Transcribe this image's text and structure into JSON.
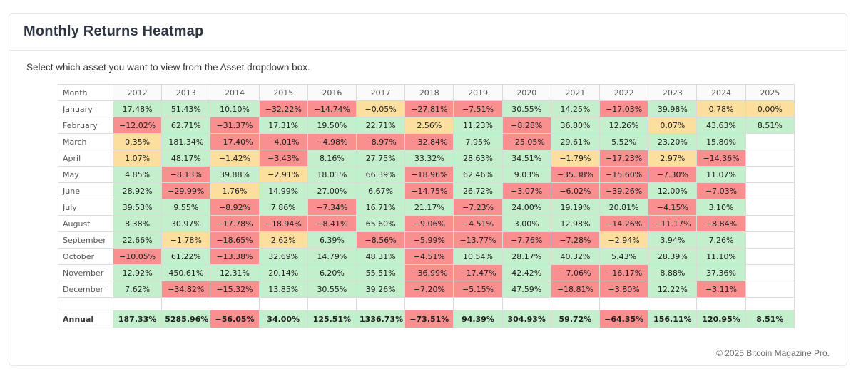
{
  "page": {
    "title": "Monthly Returns Heatmap",
    "subtitle": "Select which asset you want to view from the Asset dropdown box.",
    "footer": "© 2025 Bitcoin Magazine Pro."
  },
  "colors": {
    "positive": "#c4efcd",
    "negative": "#f98f8f",
    "neutral": "#fcdf9f",
    "empty": "#ffffff"
  },
  "chart_data": {
    "type": "heatmap",
    "title": "Monthly Returns Heatmap",
    "color_rule": "green if value >= 3%, red if value <= -3%, yellow if |value| < 3%, white if no data",
    "columns": [
      "Month",
      "2012",
      "2013",
      "2014",
      "2015",
      "2016",
      "2017",
      "2018",
      "2019",
      "2020",
      "2021",
      "2022",
      "2023",
      "2024",
      "2025"
    ],
    "rows": [
      {
        "label": "January",
        "values": [
          "17.48%",
          "51.43%",
          "10.10%",
          "−32.22%",
          "−14.74%",
          "−0.05%",
          "−27.81%",
          "−7.51%",
          "30.55%",
          "14.25%",
          "−17.03%",
          "39.98%",
          "0.78%",
          "0.00%"
        ]
      },
      {
        "label": "February",
        "values": [
          "−12.02%",
          "62.71%",
          "−31.37%",
          "17.31%",
          "19.50%",
          "22.71%",
          "2.56%",
          "11.23%",
          "−8.28%",
          "36.80%",
          "12.26%",
          "0.07%",
          "43.63%",
          "8.51%"
        ]
      },
      {
        "label": "March",
        "values": [
          "0.35%",
          "181.34%",
          "−17.40%",
          "−4.01%",
          "−4.98%",
          "−8.97%",
          "−32.84%",
          "7.95%",
          "−25.05%",
          "29.61%",
          "5.52%",
          "23.20%",
          "15.80%",
          ""
        ]
      },
      {
        "label": "April",
        "values": [
          "1.07%",
          "48.17%",
          "−1.42%",
          "−3.43%",
          "8.16%",
          "27.75%",
          "33.32%",
          "28.63%",
          "34.51%",
          "−1.79%",
          "−17.23%",
          "2.97%",
          "−14.36%",
          ""
        ]
      },
      {
        "label": "May",
        "values": [
          "4.85%",
          "−8.13%",
          "39.88%",
          "−2.91%",
          "18.01%",
          "66.39%",
          "−18.96%",
          "62.46%",
          "9.03%",
          "−35.38%",
          "−15.60%",
          "−7.30%",
          "11.07%",
          ""
        ]
      },
      {
        "label": "June",
        "values": [
          "28.92%",
          "−29.99%",
          "1.76%",
          "14.99%",
          "27.00%",
          "6.67%",
          "−14.75%",
          "26.72%",
          "−3.07%",
          "−6.02%",
          "−39.26%",
          "12.00%",
          "−7.03%",
          ""
        ]
      },
      {
        "label": "July",
        "values": [
          "39.53%",
          "9.55%",
          "−8.92%",
          "7.86%",
          "−7.34%",
          "16.71%",
          "21.17%",
          "−7.23%",
          "24.00%",
          "19.19%",
          "20.81%",
          "−4.15%",
          "3.10%",
          ""
        ]
      },
      {
        "label": "August",
        "values": [
          "8.38%",
          "30.97%",
          "−17.78%",
          "−18.94%",
          "−8.41%",
          "65.60%",
          "−9.06%",
          "−4.51%",
          "3.00%",
          "12.98%",
          "−14.26%",
          "−11.17%",
          "−8.84%",
          ""
        ]
      },
      {
        "label": "September",
        "values": [
          "22.66%",
          "−1.78%",
          "−18.65%",
          "2.62%",
          "6.39%",
          "−8.56%",
          "−5.99%",
          "−13.77%",
          "−7.76%",
          "−7.28%",
          "−2.94%",
          "3.94%",
          "7.26%",
          ""
        ]
      },
      {
        "label": "October",
        "values": [
          "−10.05%",
          "61.22%",
          "−13.38%",
          "32.69%",
          "14.79%",
          "48.31%",
          "−4.51%",
          "10.54%",
          "28.17%",
          "40.32%",
          "5.43%",
          "28.39%",
          "11.10%",
          ""
        ]
      },
      {
        "label": "November",
        "values": [
          "12.92%",
          "450.61%",
          "12.31%",
          "20.14%",
          "6.20%",
          "55.51%",
          "−36.99%",
          "−17.47%",
          "42.42%",
          "−7.06%",
          "−16.17%",
          "8.88%",
          "37.36%",
          ""
        ]
      },
      {
        "label": "December",
        "values": [
          "7.62%",
          "−34.82%",
          "−15.32%",
          "13.85%",
          "30.55%",
          "39.26%",
          "−7.20%",
          "−5.15%",
          "47.59%",
          "−18.81%",
          "−3.80%",
          "12.22%",
          "−3.11%",
          ""
        ]
      }
    ],
    "annual": {
      "label": "Annual",
      "values": [
        "187.33%",
        "5285.96%",
        "−56.05%",
        "34.00%",
        "125.51%",
        "1336.73%",
        "−73.51%",
        "94.39%",
        "304.93%",
        "59.72%",
        "−64.35%",
        "156.11%",
        "120.95%",
        "8.51%"
      ]
    }
  }
}
